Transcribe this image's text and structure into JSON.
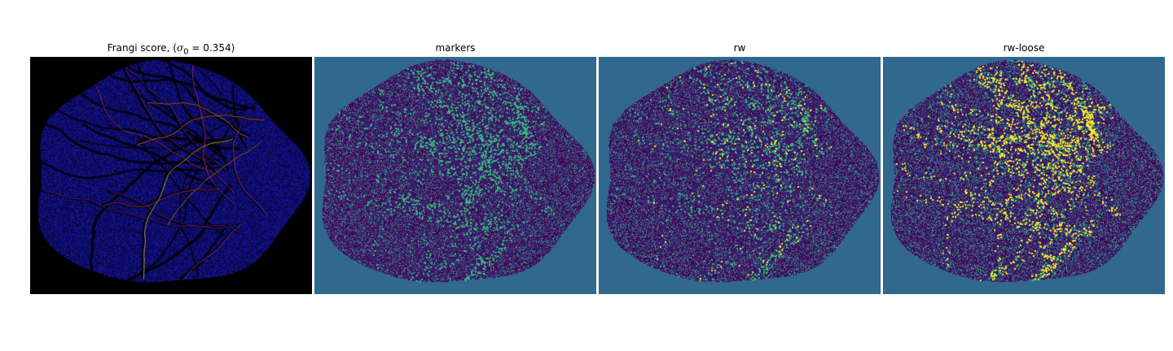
{
  "figure": {
    "panels": [
      {
        "id": "frangi",
        "title_prefix": "Frangi score, (",
        "title_math": "σ",
        "title_sub": "0",
        "title_suffix": " = 0.354)",
        "background": "#000000",
        "colormap": [
          "#0b0a8a",
          "#3a0f9e",
          "#7a1fa5",
          "#c13a8a",
          "#f07f4f",
          "#fde13a"
        ]
      },
      {
        "id": "markers",
        "title": "markers",
        "background": "#31688e",
        "colormap": [
          "#440154",
          "#31688e",
          "#35b779"
        ]
      },
      {
        "id": "rw",
        "title": "rw",
        "background": "#31688e",
        "colormap": [
          "#440154",
          "#31688e",
          "#35b779",
          "#fde725"
        ]
      },
      {
        "id": "rw-loose",
        "title": "rw-loose",
        "background": "#31688e",
        "colormap": [
          "#440154",
          "#31688e",
          "#35b779",
          "#fde725"
        ]
      }
    ]
  }
}
